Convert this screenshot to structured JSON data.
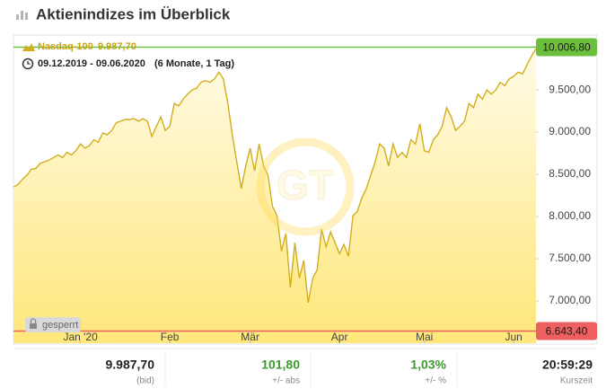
{
  "header": {
    "title": "Aktienindizes im Überblick"
  },
  "chart_data": {
    "type": "area",
    "series": [
      {
        "name": "Nasdaq-100",
        "color": "#d2ae1e",
        "values": [
          8350,
          8380,
          8440,
          8490,
          8560,
          8570,
          8630,
          8650,
          8670,
          8700,
          8730,
          8700,
          8760,
          8730,
          8780,
          8860,
          8810,
          8840,
          8910,
          8880,
          8990,
          8970,
          9020,
          9110,
          9130,
          9150,
          9150,
          9160,
          9130,
          9160,
          9130,
          8950,
          9070,
          9180,
          9020,
          9070,
          9340,
          9310,
          9390,
          9450,
          9500,
          9520,
          9590,
          9610,
          9590,
          9630,
          9710,
          9630,
          9340,
          8970,
          8650,
          8330,
          8600,
          8810,
          8540,
          8860,
          8600,
          8490,
          8120,
          8010,
          7590,
          7800,
          7160,
          7690,
          7270,
          7480,
          6980,
          7270,
          7370,
          7850,
          7640,
          7820,
          7690,
          7560,
          7670,
          7530,
          8010,
          8060,
          8220,
          8330,
          8490,
          8650,
          8860,
          8810,
          8600,
          8860,
          8700,
          8760,
          8700,
          8910,
          8860,
          9100,
          8780,
          8760,
          8910,
          8970,
          9070,
          9290,
          9180,
          9020,
          9070,
          9130,
          9340,
          9290,
          9450,
          9390,
          9500,
          9450,
          9500,
          9590,
          9550,
          9630,
          9660,
          9710,
          9690,
          9800,
          9900,
          9987.7
        ]
      }
    ],
    "legend_value": "9.987,70",
    "period": "09.12.2019 - 09.06.2020",
    "period_note": "(6 Monate, 1 Tag)",
    "watermark": "GT",
    "locked_label": "gesperrt",
    "xlim": [
      0,
      117
    ],
    "xticks": [
      {
        "value": 15,
        "label": "Jan '20"
      },
      {
        "value": 35,
        "label": "Feb"
      },
      {
        "value": 53,
        "label": "Mär"
      },
      {
        "value": 73,
        "label": "Apr"
      },
      {
        "value": 92,
        "label": "Mai"
      },
      {
        "value": 112,
        "label": "Jun"
      }
    ],
    "ylim": [
      6500,
      10150
    ],
    "yticks": [
      {
        "value": 7000,
        "label": "7.000,00"
      },
      {
        "value": 7500,
        "label": "7.500,00"
      },
      {
        "value": 8000,
        "label": "8.000,00"
      },
      {
        "value": 8500,
        "label": "8.500,00"
      },
      {
        "value": 9000,
        "label": "9.000,00"
      },
      {
        "value": 9500,
        "label": "9.500,00"
      }
    ],
    "grid": false,
    "reference_lines": [
      {
        "value": 10006.8,
        "label": "10.006,80",
        "color": "#6cbf3c"
      },
      {
        "value": 6643.4,
        "label": "6.643,40",
        "color": "#ee5f5f"
      }
    ]
  },
  "quote": [
    {
      "value": "9.987,70",
      "label": "(bid)",
      "color": "#222222"
    },
    {
      "value": "101,80",
      "label": "+/- abs",
      "color": "#3c9a2e"
    },
    {
      "value": "1,03%",
      "label": "+/- %",
      "color": "#3c9a2e"
    },
    {
      "value": "20:59:29",
      "label": "Kurszeit",
      "color": "#222222"
    }
  ]
}
